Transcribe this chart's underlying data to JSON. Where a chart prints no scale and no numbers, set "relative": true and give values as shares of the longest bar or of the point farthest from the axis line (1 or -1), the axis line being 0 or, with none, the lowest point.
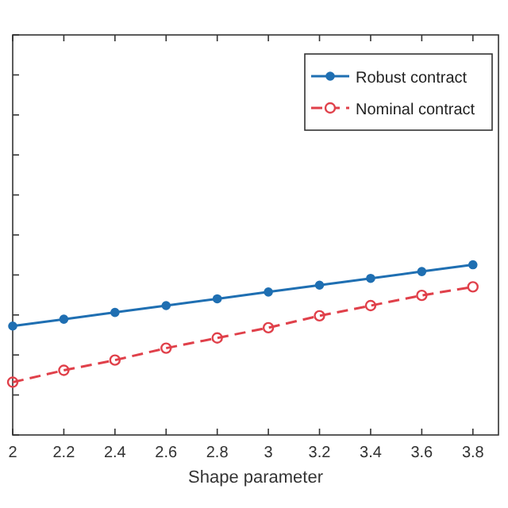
{
  "chart_data": {
    "type": "line",
    "xlabel": "Shape parameter",
    "relative": true,
    "x": [
      2,
      2.2,
      2.4,
      2.6,
      2.8,
      3,
      3.2,
      3.4,
      3.6,
      3.8
    ],
    "xlim": [
      2,
      3.9
    ],
    "xticks": [
      2,
      2.2,
      2.4,
      2.6,
      2.8,
      3,
      3.2,
      3.4,
      3.6,
      3.8
    ],
    "legend": "top right",
    "grid": false,
    "marker": "circle",
    "series": [
      {
        "name": "Robust contract",
        "color": "#1f6fb2",
        "line_style": "solid",
        "values": [
          0.64,
          0.68,
          0.72,
          0.76,
          0.8,
          0.84,
          0.88,
          0.92,
          0.96,
          1.0
        ]
      },
      {
        "name": "Nominal contract",
        "color": "#e0404a",
        "line_style": "dashed",
        "values": [
          0.31,
          0.38,
          0.44,
          0.51,
          0.57,
          0.63,
          0.7,
          0.76,
          0.82,
          0.87
        ]
      }
    ]
  }
}
